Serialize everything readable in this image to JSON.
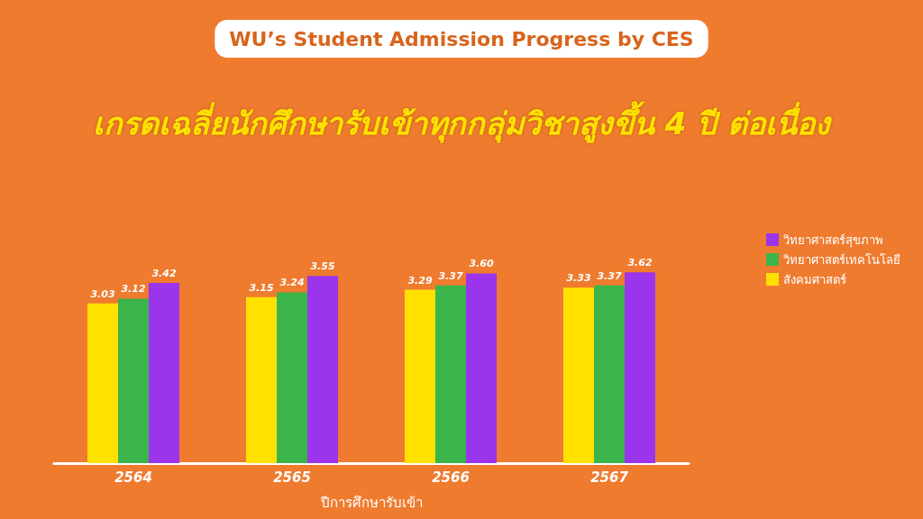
{
  "chart_data": {
    "type": "bar",
    "title": "WU’s Student Admission Progress by CES",
    "subtitle": "เกรดเฉลี่ยนักศึกษารับเข้าทุกกลุ่มวิชาสูงขึ้น 4 ปี ต่อเนื่อง",
    "xlabel": "ปีการศึกษารับเข้า",
    "categories": [
      "2564",
      "2565",
      "2566",
      "2567"
    ],
    "series": [
      {
        "name": "สังคมศาสตร์",
        "color": "#ffe100",
        "values": [
          3.03,
          3.15,
          3.29,
          3.33
        ],
        "value_labels": [
          "3.03",
          "3.15",
          "3.29",
          "3.33"
        ]
      },
      {
        "name": "วิทยาศาสตร์เทคโนโลยี",
        "color": "#3bb44a",
        "values": [
          3.12,
          3.24,
          3.37,
          3.37
        ],
        "value_labels": [
          "3.12",
          "3.24",
          "3.37",
          "3.37"
        ]
      },
      {
        "name": "วิทยาศาสตร์สุขภาพ",
        "color": "#9a35ec",
        "values": [
          3.42,
          3.55,
          3.6,
          3.62
        ],
        "value_labels": [
          "3.42",
          "3.55",
          "3.60",
          "3.62"
        ]
      }
    ],
    "tick_labels": "x",
    "legend": "right"
  }
}
